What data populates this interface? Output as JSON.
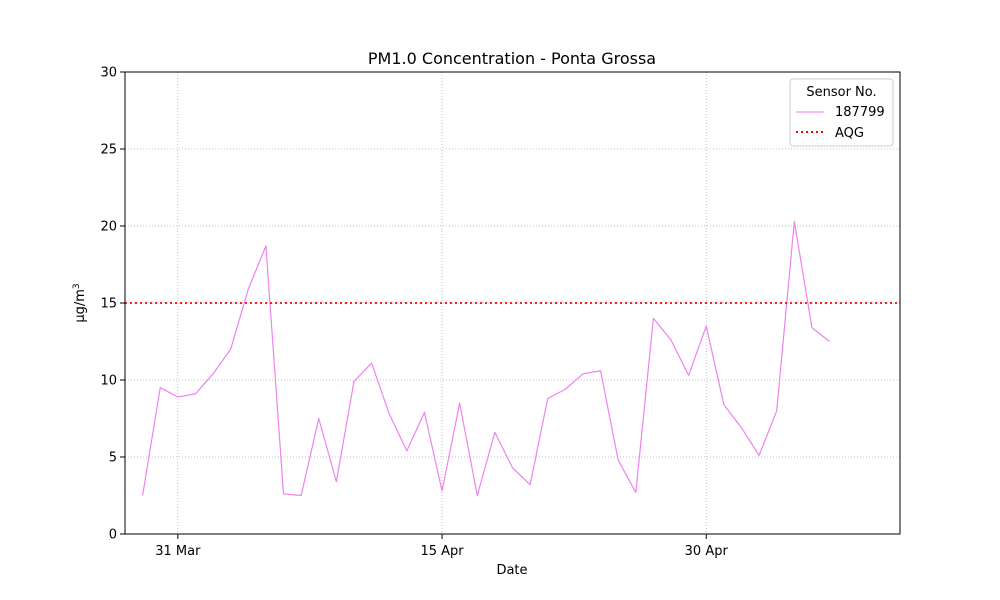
{
  "chart_data": {
    "type": "line",
    "title": "PM1.0 Concentration - Ponta Grossa",
    "xlabel": "Date",
    "ylabel": "μg/m",
    "ylabel_superscript": "3",
    "xlim": [
      "2024-03-28",
      "2024-05-11"
    ],
    "ylim": [
      0,
      30
    ],
    "yticks": [
      0,
      5,
      10,
      15,
      20,
      25,
      30
    ],
    "xticks": [
      {
        "date": "2024-03-31",
        "label": "31 Mar"
      },
      {
        "date": "2024-04-15",
        "label": "15 Apr"
      },
      {
        "date": "2024-04-30",
        "label": "30 Apr"
      }
    ],
    "grid": true,
    "legend": {
      "title": "Sensor No.",
      "position": "top-right"
    },
    "series": [
      {
        "name": "187799",
        "color": "#ee82ee",
        "style": "solid",
        "x": [
          "2024-03-29",
          "2024-03-30",
          "2024-03-31",
          "2024-04-01",
          "2024-04-02",
          "2024-04-03",
          "2024-04-04",
          "2024-04-05",
          "2024-04-06",
          "2024-04-07",
          "2024-04-08",
          "2024-04-09",
          "2024-04-10",
          "2024-04-11",
          "2024-04-12",
          "2024-04-13",
          "2024-04-14",
          "2024-04-15",
          "2024-04-16",
          "2024-04-17",
          "2024-04-18",
          "2024-04-19",
          "2024-04-20",
          "2024-04-21",
          "2024-04-22",
          "2024-04-23",
          "2024-04-24",
          "2024-04-25",
          "2024-04-26",
          "2024-04-27",
          "2024-04-28",
          "2024-04-29",
          "2024-04-30",
          "2024-05-01",
          "2024-05-02",
          "2024-05-03",
          "2024-05-04",
          "2024-05-05",
          "2024-05-06",
          "2024-05-07"
        ],
        "values": [
          2.5,
          9.5,
          8.9,
          9.1,
          10.4,
          12.0,
          15.9,
          18.7,
          2.6,
          2.5,
          7.5,
          3.4,
          9.9,
          11.1,
          7.8,
          5.4,
          7.9,
          2.8,
          8.5,
          2.5,
          6.6,
          4.3,
          3.2,
          8.8,
          9.4,
          10.4,
          10.6,
          4.8,
          2.7,
          14.0,
          12.6,
          10.3,
          13.5,
          8.4,
          6.9,
          5.1,
          8.0,
          20.3,
          13.4,
          12.5
        ]
      },
      {
        "name": "AQG",
        "color": "#ff0000",
        "style": "dotted",
        "value": 15
      }
    ]
  }
}
